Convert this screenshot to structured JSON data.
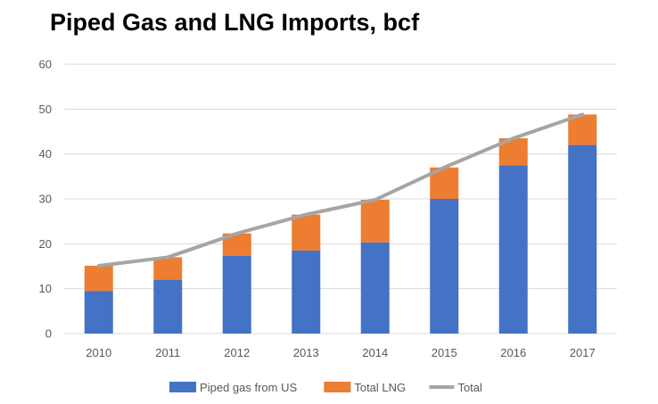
{
  "chart_data": {
    "type": "bar",
    "subtype": "stacked-bar-with-line",
    "title": "Piped Gas and LNG Imports, bcf",
    "xlabel": "",
    "ylabel": "",
    "categories": [
      "2010",
      "2011",
      "2012",
      "2013",
      "2014",
      "2015",
      "2016",
      "2017"
    ],
    "ylim": [
      0,
      60
    ],
    "yticks": [
      0,
      10,
      20,
      30,
      40,
      50,
      60
    ],
    "grid": true,
    "legend_position": "bottom",
    "series": [
      {
        "name": "Piped gas from US",
        "kind": "bar",
        "color": "#4472C4",
        "values": [
          9.5,
          12,
          17.3,
          18.5,
          20.3,
          30,
          37.5,
          42
        ]
      },
      {
        "name": "Total LNG",
        "kind": "bar",
        "color": "#ED7D31",
        "values": [
          5.6,
          5.0,
          5.0,
          8.0,
          9.5,
          7.0,
          6.0,
          6.8
        ]
      },
      {
        "name": "Total",
        "kind": "line",
        "color": "#A5A5A5",
        "values": [
          15.1,
          17.0,
          22.3,
          26.5,
          29.8,
          37.0,
          43.5,
          48.8
        ]
      }
    ]
  }
}
